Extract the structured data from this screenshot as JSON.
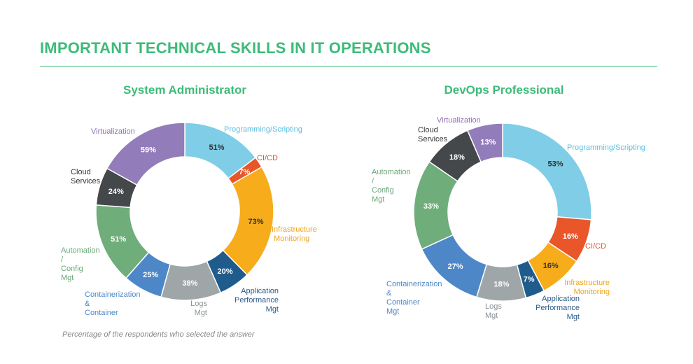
{
  "title": "IMPORTANT TECHNICAL SKILLS IN IT OPERATIONS",
  "footnote": "Percentage of the respondents who selected the answer",
  "chart_data": [
    {
      "type": "donut",
      "title": "System Administrator",
      "unit": "%",
      "slices": [
        {
          "label": "Programming/Scripting",
          "value": 51,
          "color": "#7fcde6"
        },
        {
          "label": "CI/CD",
          "value": 7,
          "color": "#e8562a"
        },
        {
          "label": "Infrastructure Monitoring",
          "value": 73,
          "color": "#f6ac1b"
        },
        {
          "label": "Application Performance Mgt",
          "value": 20,
          "color": "#1f5c8c"
        },
        {
          "label": "Logs Mgt",
          "value": 38,
          "color": "#9ea6a8"
        },
        {
          "label": "Containerization & Container",
          "value": 25,
          "color": "#4d87c7"
        },
        {
          "label": "Automation / Config Mgt",
          "value": 51,
          "color": "#6fad7a"
        },
        {
          "label": "Cloud Services",
          "value": 24,
          "color": "#44484a"
        },
        {
          "label": "Virtualization",
          "value": 59,
          "color": "#937cba"
        }
      ],
      "label_colors": [
        "#5fbede",
        "#e05126",
        "#f0a41a",
        "#2a5b8a",
        "#8a9194",
        "#4d87c7",
        "#6aa87a",
        "#333333",
        "#8c6db5"
      ]
    },
    {
      "type": "donut",
      "title": "DevOps Professional",
      "unit": "%",
      "slices": [
        {
          "label": "Programming/Scripting",
          "value": 53,
          "color": "#7fcde6"
        },
        {
          "label": "CI/CD",
          "value": 16,
          "color": "#e8562a"
        },
        {
          "label": "Infrastructure Monitoring",
          "value": 16,
          "color": "#f6ac1b"
        },
        {
          "label": "Application Performance Mgt",
          "value": 7,
          "color": "#1f5c8c"
        },
        {
          "label": "Logs Mgt",
          "value": 18,
          "color": "#9ea6a8"
        },
        {
          "label": "Containerization & Container Mgt",
          "value": 27,
          "color": "#4d87c7"
        },
        {
          "label": "Automation / Config Mgt",
          "value": 33,
          "color": "#6fad7a"
        },
        {
          "label": "Cloud Services",
          "value": 18,
          "color": "#44484a"
        },
        {
          "label": "Virtualization",
          "value": 13,
          "color": "#937cba"
        }
      ],
      "label_colors": [
        "#5fbede",
        "#e05126",
        "#f0a41a",
        "#2a5b8a",
        "#8a9194",
        "#4d87c7",
        "#6aa87a",
        "#333333",
        "#8c6db5"
      ]
    }
  ]
}
